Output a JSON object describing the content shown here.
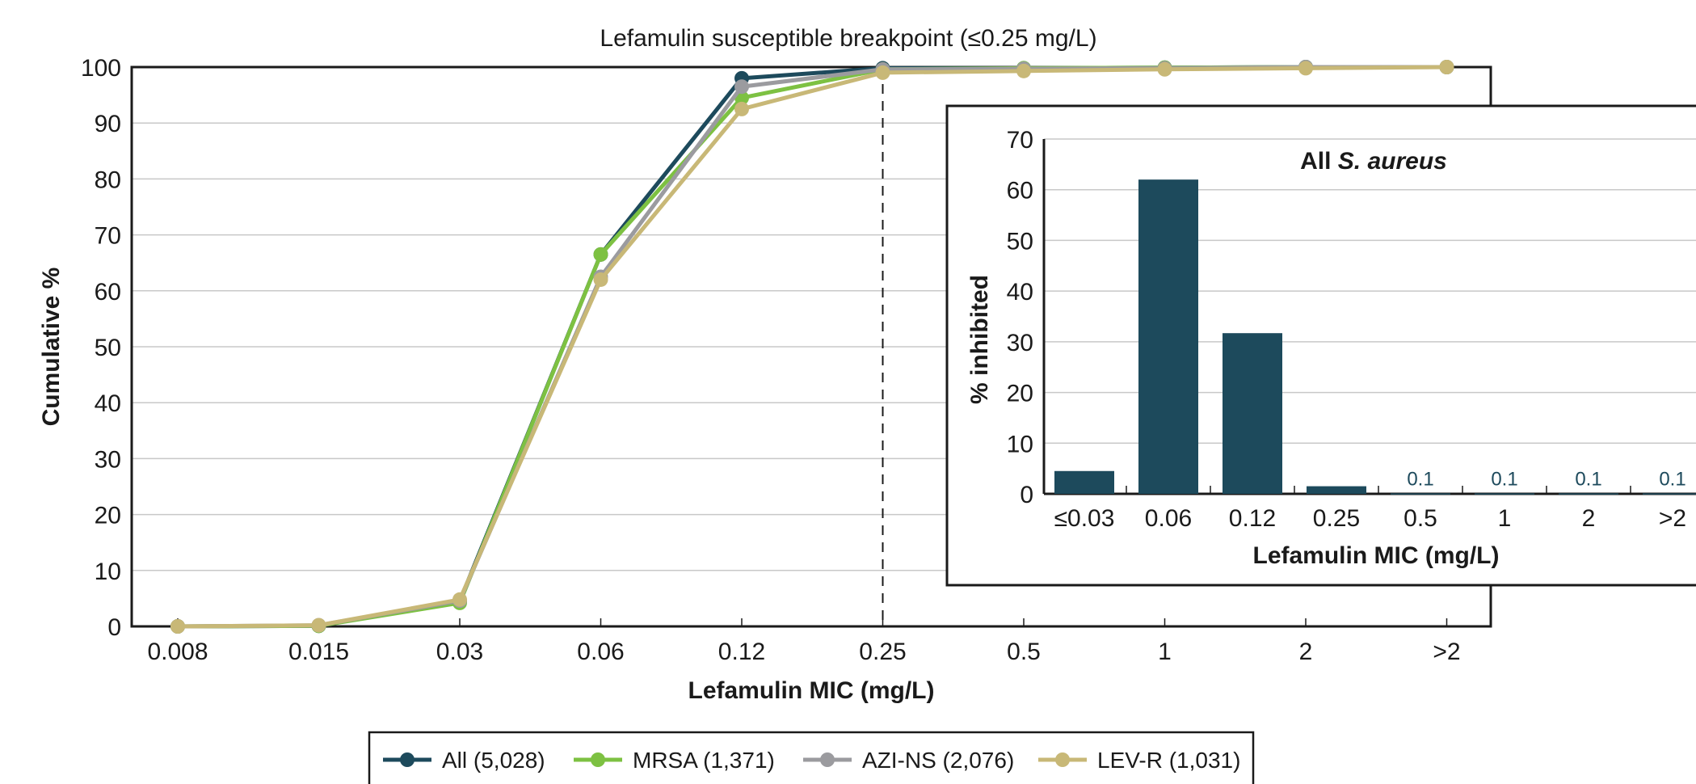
{
  "chart_data": [
    {
      "type": "line",
      "annotation": "Lefamulin susceptible breakpoint (≤0.25 mg/L)",
      "breakpoint_category": "0.25",
      "xlabel": "Lefamulin MIC (mg/L)",
      "ylabel": "Cumulative %",
      "ylim": [
        0,
        100
      ],
      "yticks": [
        "0",
        "10",
        "20",
        "30",
        "40",
        "50",
        "60",
        "70",
        "80",
        "90",
        "100"
      ],
      "categories": [
        "0.008",
        "0.015",
        "0.03",
        "0.06",
        "0.12",
        "0.25",
        "0.5",
        "1",
        "2",
        ">2"
      ],
      "grid": true,
      "legend_position": "bottom",
      "series": [
        {
          "name": "All (5,028)",
          "color": "#1d4a5c",
          "values": [
            0,
            0.1,
            4.5,
            66.5,
            98.0,
            99.8,
            99.8,
            99.9,
            100,
            100
          ]
        },
        {
          "name": "MRSA (1,371)",
          "color": "#7dc142",
          "values": [
            0,
            0.1,
            4.2,
            66.5,
            94.5,
            99.6,
            99.8,
            99.9,
            100,
            100
          ]
        },
        {
          "name": "AZI-NS (2,076)",
          "color": "#9b9b9f",
          "values": [
            0,
            0.2,
            4.6,
            62.5,
            96.5,
            99.6,
            99.7,
            99.8,
            100,
            100
          ]
        },
        {
          "name": "LEV-R (1,031)",
          "color": "#c8b877",
          "values": [
            0,
            0.2,
            4.8,
            62.0,
            92.5,
            99.0,
            99.3,
            99.6,
            99.8,
            100
          ]
        }
      ]
    },
    {
      "type": "bar",
      "title_prefix": "All ",
      "title_italic": "S. aureus",
      "xlabel": "Lefamulin MIC (mg/L)",
      "ylabel": "% inhibited",
      "ylim": [
        0,
        70
      ],
      "yticks": [
        "0",
        "10",
        "20",
        "30",
        "40",
        "50",
        "60",
        "70"
      ],
      "categories": [
        "≤0.03",
        "0.06",
        "0.12",
        "0.25",
        "0.5",
        "1",
        "2",
        ">2"
      ],
      "values": [
        4.5,
        62.0,
        31.7,
        1.5,
        0.1,
        0.1,
        0.1,
        0.1
      ],
      "data_labels": [
        "",
        "",
        "",
        "",
        "0.1",
        "0.1",
        "0.1",
        "0.1"
      ],
      "color": "#1d4a5c",
      "grid": true
    }
  ]
}
